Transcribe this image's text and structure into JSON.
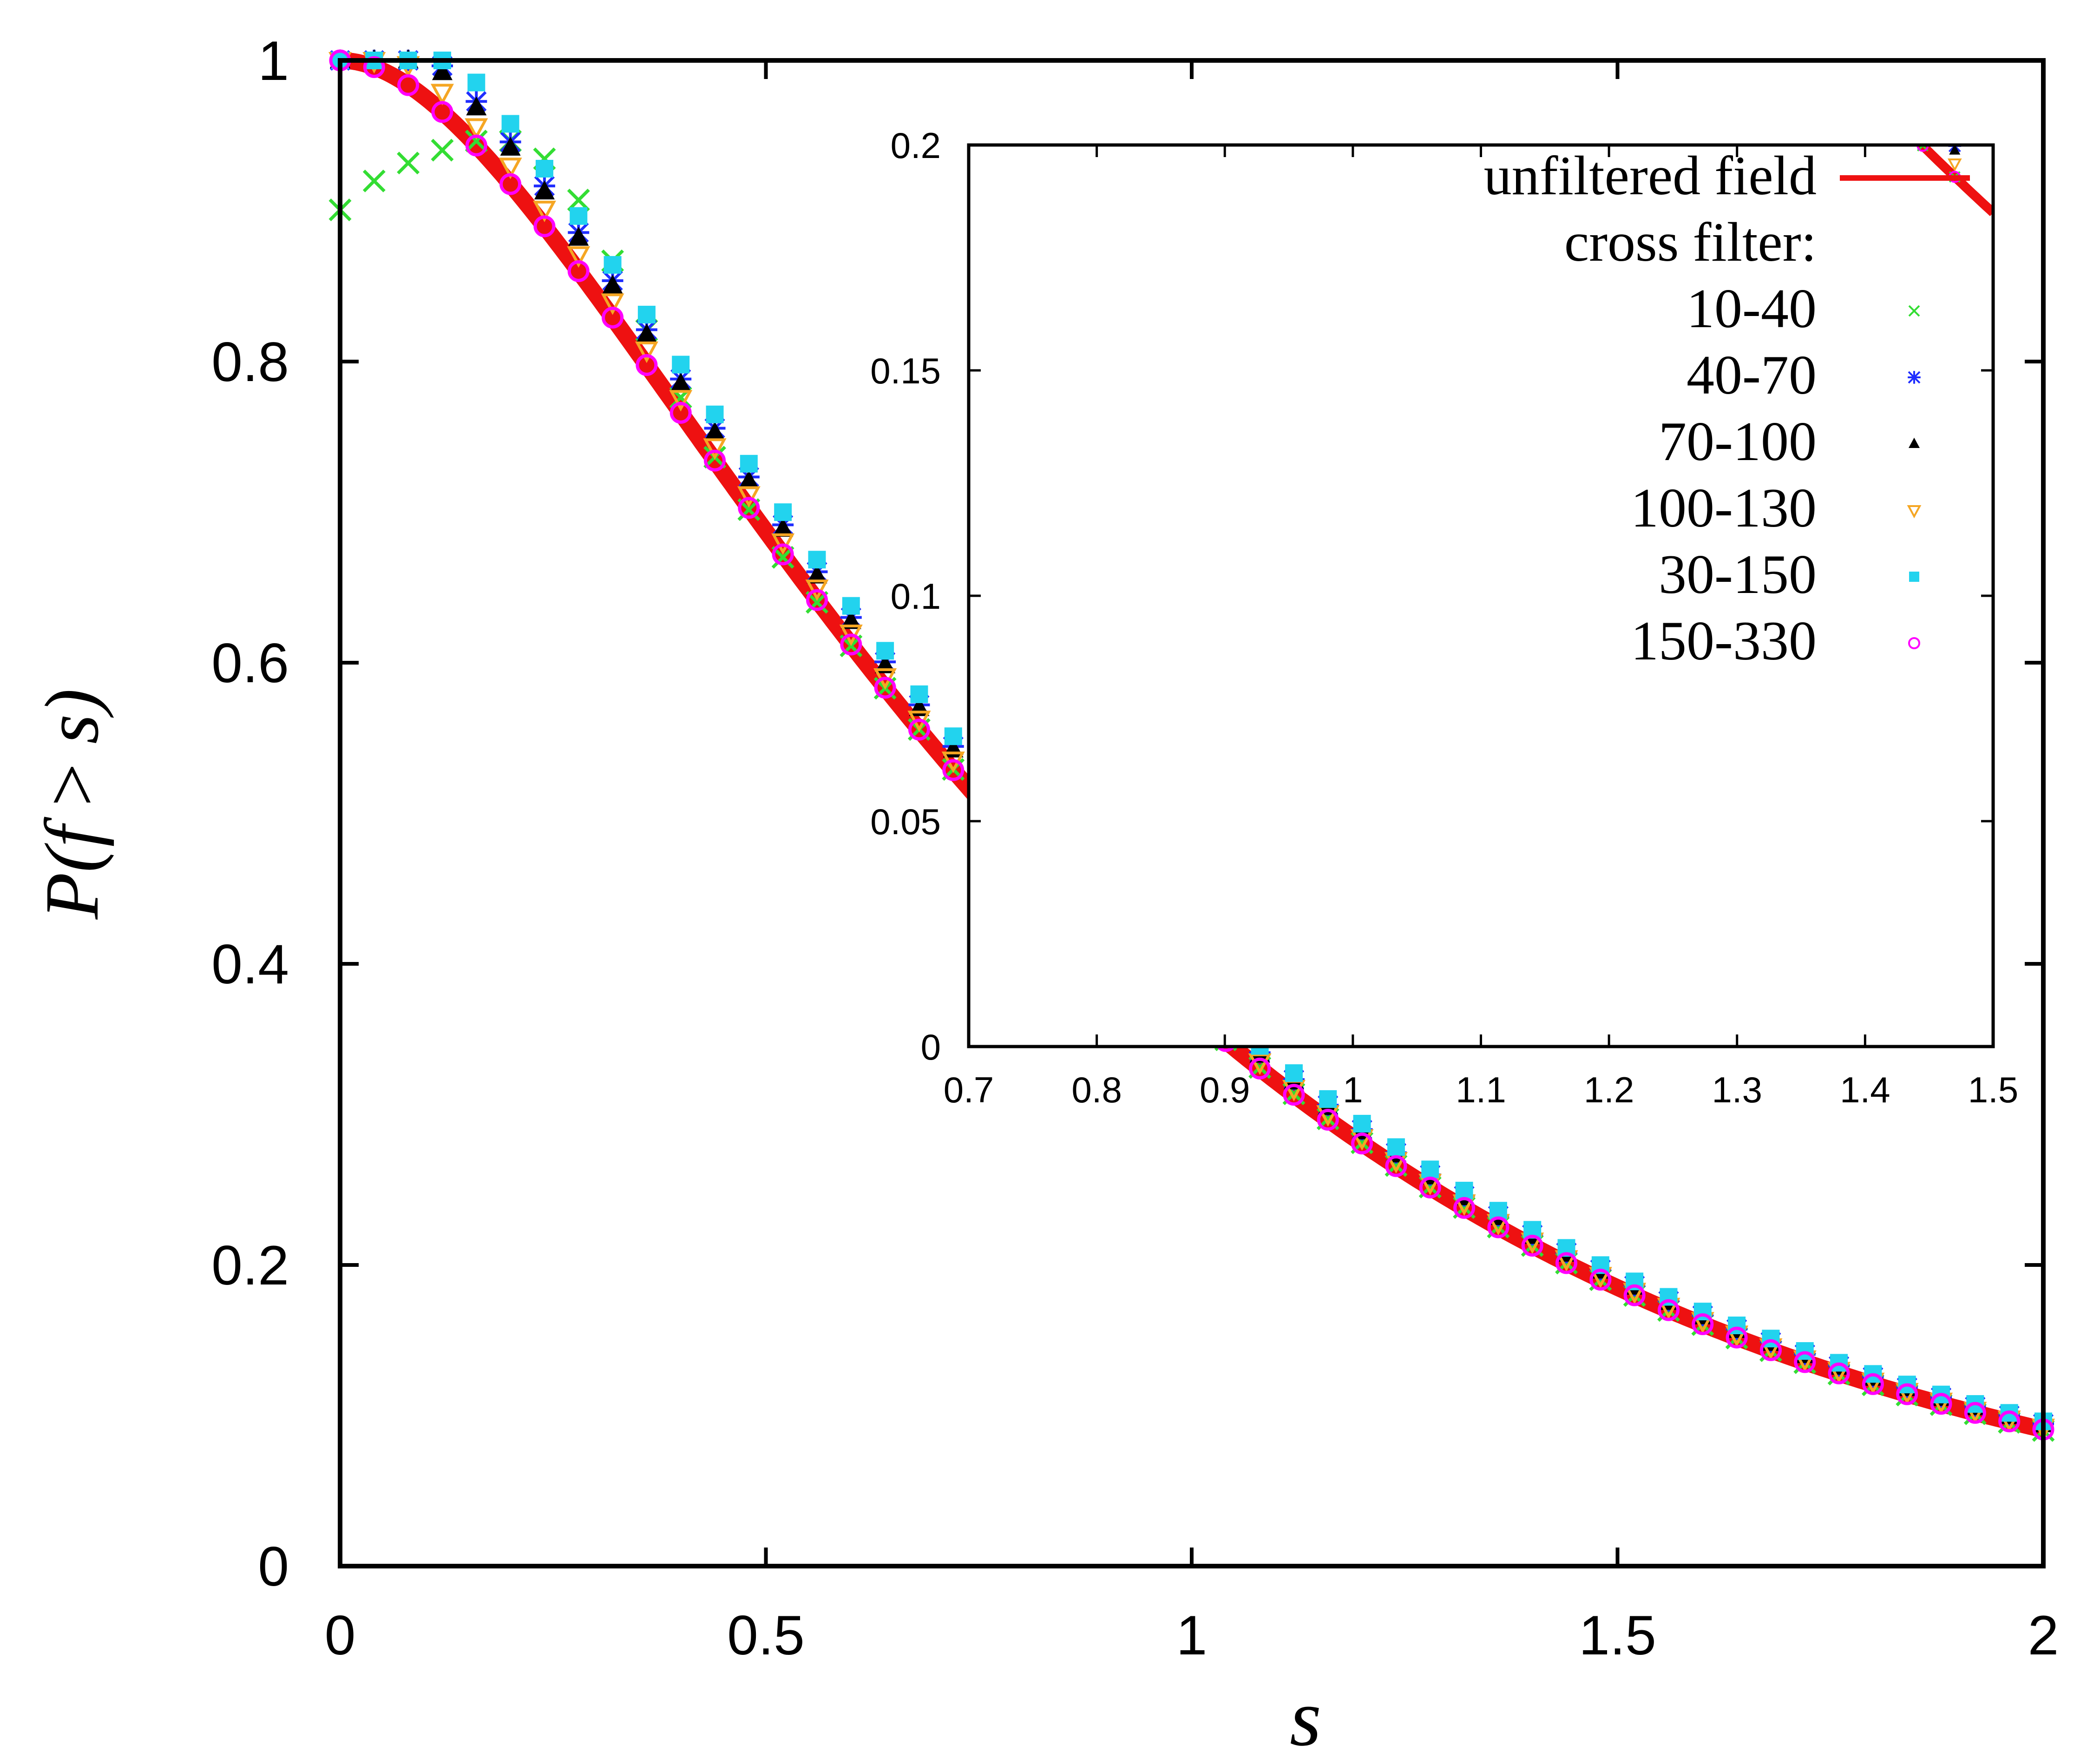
{
  "chart_data": [
    {
      "id": "main",
      "type": "scatter",
      "title": "",
      "xlabel": "s",
      "ylabel": "P(f > s)",
      "ylabel_parts": [
        "P(",
        "f",
        " > ",
        "s",
        ")"
      ],
      "xlim": [
        0,
        2
      ],
      "ylim": [
        0,
        1
      ],
      "xticks": [
        0,
        0.5,
        1,
        1.5,
        2
      ],
      "xtick_labels": [
        "0",
        "0.5",
        "1",
        "1.5",
        "2"
      ],
      "yticks": [
        0,
        0.2,
        0.4,
        0.6,
        0.8,
        1
      ],
      "ytick_labels": [
        "0",
        "0.2",
        "0.4",
        "0.6",
        "0.8",
        "1"
      ],
      "curve": {
        "name": "unfiltered field",
        "function": "P(f>s) = exp(-3 s^2 / (1 + 2 s))"
      },
      "series": [
        {
          "name": "10-40",
          "marker": "x",
          "color": "#33dd33",
          "x_start": 0.0,
          "x_step": 0.04,
          "n": 51,
          "offset": "0.07*exp(-((s-0.25)/0.13)^2) - 0.12*exp(-s/0.2) + 0.02*exp(-s/0.5) - 0.001"
        },
        {
          "name": "40-70",
          "marker": "asterisk",
          "color": "#1f2dff",
          "x_start": 0.0,
          "x_step": 0.04,
          "n": 51,
          "offset": "0.035*exp(-s/0.9)"
        },
        {
          "name": "70-100",
          "marker": "triangle-up",
          "color": "#000000",
          "x_start": 0.0,
          "x_step": 0.04,
          "n": 51,
          "offset": "0.03*exp(-s/0.9)"
        },
        {
          "name": "100-130",
          "marker": "triangle-down-open",
          "color": "#f5a623",
          "x_start": 0.0,
          "x_step": 0.04,
          "n": 51,
          "offset": "0.015*exp(-s/0.9)"
        },
        {
          "name": "30-150",
          "marker": "square",
          "color": "#22d3ee",
          "x_start": 0.0,
          "x_step": 0.04,
          "n": 51,
          "offset": "0.05*exp(-s/0.9)"
        },
        {
          "name": "150-330",
          "marker": "circle-open",
          "color": "#ff00ff",
          "x_start": 0.0,
          "x_step": 0.04,
          "n": 51,
          "offset": "0.0"
        }
      ]
    },
    {
      "id": "inset",
      "type": "scatter",
      "title": "",
      "xlabel": "",
      "ylabel": "",
      "xlim": [
        0.7,
        1.5
      ],
      "ylim": [
        0,
        0.2
      ],
      "xticks": [
        0.7,
        0.8,
        0.9,
        1,
        1.1,
        1.2,
        1.3,
        1.4,
        1.5
      ],
      "xtick_labels": [
        "0.7",
        "0.8",
        "0.9",
        "1",
        "1.1",
        "1.2",
        "1.3",
        "1.4",
        "1.5"
      ],
      "yticks": [
        0,
        0.05,
        0.1,
        0.15,
        0.2
      ],
      "ytick_labels": [
        "0",
        "0.05",
        "0.1",
        "0.15",
        "0.2"
      ],
      "legend_position": "top-right",
      "legend_header": "cross filter:",
      "legend_items": [
        "unfiltered field",
        "10-40",
        "40-70",
        "70-100",
        "100-130",
        "30-150",
        "150-330"
      ],
      "curve": {
        "name": "unfiltered field",
        "function": "P(f>s) = exp(-3 s^2 / (1 + 2 s))"
      },
      "series_x_start": 0.72,
      "series_x_step": 0.025,
      "series_n": 31
    }
  ],
  "colors": {
    "curve": "#ee1111",
    "axes": "#000000"
  }
}
